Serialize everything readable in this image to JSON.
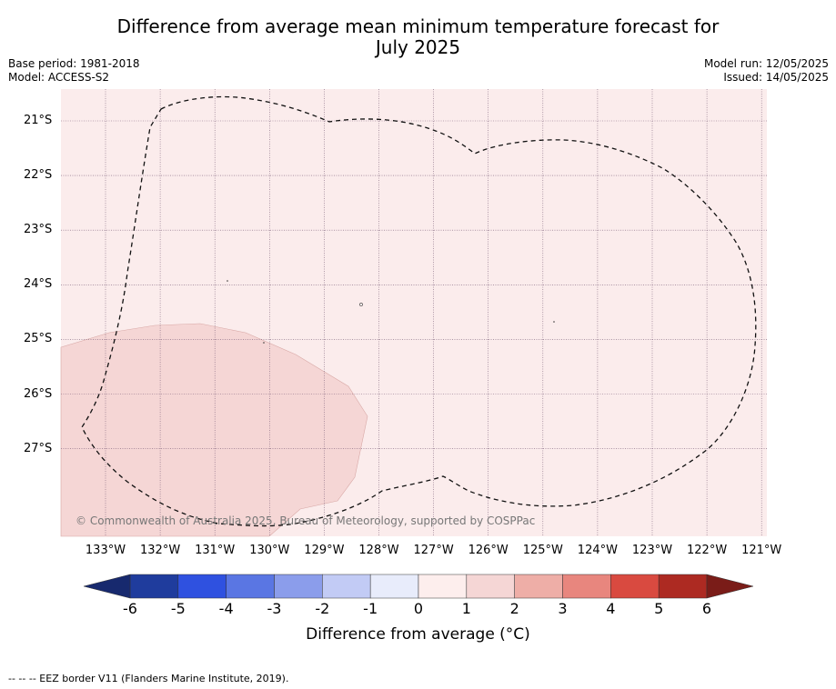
{
  "title": {
    "line1": "Difference from average mean minimum temperature forecast for",
    "line2": "July 2025"
  },
  "meta": {
    "base_period": "Base period: 1981-2018",
    "model": "Model: ACCESS-S2",
    "model_run": "Model run: 12/05/2025",
    "issued": "Issued: 14/05/2025"
  },
  "map": {
    "lat_labels": [
      "21°S",
      "22°S",
      "23°S",
      "24°S",
      "25°S",
      "26°S",
      "27°S"
    ],
    "lon_labels": [
      "133°W",
      "132°W",
      "131°W",
      "130°W",
      "129°W",
      "128°W",
      "127°W",
      "126°W",
      "125°W",
      "124°W",
      "123°W",
      "122°W",
      "121°W"
    ],
    "copyright": "© Commonwealth of Australia 2025, Bureau of Meteorology, supported by COSPPac",
    "background_anomaly_bin": "0 to 1",
    "southwest_anomaly_bin": "1 to 2"
  },
  "colorbar": {
    "ticks": [
      "-6",
      "-5",
      "-4",
      "-3",
      "-2",
      "-1",
      "0",
      "1",
      "2",
      "3",
      "4",
      "5",
      "6"
    ],
    "colors": [
      "#1f3c9d",
      "#2f51e0",
      "#5a76e3",
      "#8b9deb",
      "#c2cbf5",
      "#e8ecfb",
      "#fdeeed",
      "#f5d6d5",
      "#eeaea7",
      "#e8867e",
      "#d94a40",
      "#ad2a22"
    ],
    "low_extend_color": "#17296e",
    "high_extend_color": "#7a1c18",
    "label": "Difference from average (°C)"
  },
  "footnote": "--  --  -- EEZ border V11 (Flanders Marine Institute, 2019)."
}
